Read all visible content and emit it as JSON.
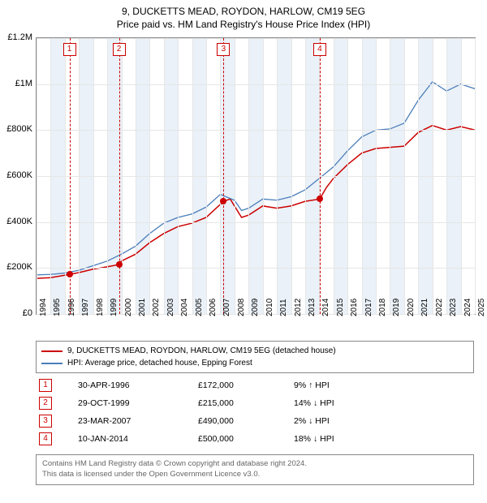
{
  "title_line1": "9, DUCKETTS MEAD, ROYDON, HARLOW, CM19 5EG",
  "title_line2": "Price paid vs. HM Land Registry's House Price Index (HPI)",
  "chart": {
    "type": "line",
    "x_min": 1994,
    "x_max": 2025,
    "y_min": 0,
    "y_max": 1200000,
    "y_ticks": [
      0,
      200000,
      400000,
      600000,
      800000,
      1000000,
      1200000
    ],
    "y_tick_labels": [
      "£0",
      "£200K",
      "£400K",
      "£600K",
      "£800K",
      "£1M",
      "£1.2M"
    ],
    "x_ticks": [
      1994,
      1995,
      1996,
      1997,
      1998,
      1999,
      2000,
      2001,
      2002,
      2003,
      2004,
      2005,
      2006,
      2007,
      2008,
      2009,
      2010,
      2011,
      2012,
      2013,
      2014,
      2015,
      2016,
      2017,
      2018,
      2019,
      2020,
      2021,
      2022,
      2023,
      2024,
      2025
    ],
    "background_color": "#ffffff",
    "grid_color": "#e6e6e6",
    "band_color": "#eaf1f8",
    "series": [
      {
        "label": "9, DUCKETTS MEAD, ROYDON, HARLOW, CM19 5EG (detached house)",
        "color": "#cc0000",
        "width": 1.5,
        "pts": [
          [
            1994,
            155000
          ],
          [
            1995,
            158000
          ],
          [
            1996.33,
            172000
          ],
          [
            1997,
            180000
          ],
          [
            1998,
            195000
          ],
          [
            1999,
            205000
          ],
          [
            1999.83,
            215000
          ],
          [
            2000,
            230000
          ],
          [
            2001,
            260000
          ],
          [
            2002,
            310000
          ],
          [
            2003,
            350000
          ],
          [
            2004,
            380000
          ],
          [
            2005,
            395000
          ],
          [
            2006,
            420000
          ],
          [
            2007.23,
            490000
          ],
          [
            2007.7,
            500000
          ],
          [
            2008,
            470000
          ],
          [
            2008.5,
            420000
          ],
          [
            2009,
            430000
          ],
          [
            2010,
            470000
          ],
          [
            2011,
            460000
          ],
          [
            2012,
            470000
          ],
          [
            2013,
            490000
          ],
          [
            2014.03,
            500000
          ],
          [
            2014.5,
            550000
          ],
          [
            2015,
            590000
          ],
          [
            2016,
            650000
          ],
          [
            2017,
            700000
          ],
          [
            2018,
            720000
          ],
          [
            2019,
            725000
          ],
          [
            2020,
            730000
          ],
          [
            2021,
            790000
          ],
          [
            2022,
            820000
          ],
          [
            2023,
            800000
          ],
          [
            2024,
            815000
          ],
          [
            2025,
            800000
          ]
        ]
      },
      {
        "label": "HPI: Average price, detached house, Epping Forest",
        "color": "#4a7ebb",
        "width": 1.3,
        "pts": [
          [
            1994,
            170000
          ],
          [
            1995,
            172000
          ],
          [
            1996,
            178000
          ],
          [
            1997,
            190000
          ],
          [
            1998,
            210000
          ],
          [
            1999,
            230000
          ],
          [
            2000,
            260000
          ],
          [
            2001,
            295000
          ],
          [
            2002,
            350000
          ],
          [
            2003,
            395000
          ],
          [
            2004,
            420000
          ],
          [
            2005,
            435000
          ],
          [
            2006,
            465000
          ],
          [
            2007,
            520000
          ],
          [
            2008,
            495000
          ],
          [
            2008.5,
            450000
          ],
          [
            2009,
            460000
          ],
          [
            2010,
            500000
          ],
          [
            2011,
            495000
          ],
          [
            2012,
            510000
          ],
          [
            2013,
            540000
          ],
          [
            2014,
            590000
          ],
          [
            2015,
            640000
          ],
          [
            2016,
            710000
          ],
          [
            2017,
            770000
          ],
          [
            2018,
            800000
          ],
          [
            2019,
            805000
          ],
          [
            2020,
            830000
          ],
          [
            2021,
            930000
          ],
          [
            2022,
            1010000
          ],
          [
            2023,
            970000
          ],
          [
            2024,
            1000000
          ],
          [
            2025,
            980000
          ]
        ]
      }
    ],
    "event_markers": [
      {
        "n": "1",
        "x": 1996.33,
        "y": 172000
      },
      {
        "n": "2",
        "x": 1999.83,
        "y": 215000
      },
      {
        "n": "3",
        "x": 2007.23,
        "y": 490000
      },
      {
        "n": "4",
        "x": 2014.03,
        "y": 500000
      }
    ],
    "dash_color": "#cc0000"
  },
  "legend": {
    "items": [
      {
        "color": "#cc0000",
        "label": "9, DUCKETTS MEAD, ROYDON, HARLOW, CM19 5EG (detached house)"
      },
      {
        "color": "#4a7ebb",
        "label": "HPI: Average price, detached house, Epping Forest"
      }
    ]
  },
  "events": [
    {
      "n": "1",
      "date": "30-APR-1996",
      "price": "£172,000",
      "delta": "9%",
      "dir": "↑",
      "suffix": "HPI"
    },
    {
      "n": "2",
      "date": "29-OCT-1999",
      "price": "£215,000",
      "delta": "14%",
      "dir": "↓",
      "suffix": "HPI"
    },
    {
      "n": "3",
      "date": "23-MAR-2007",
      "price": "£490,000",
      "delta": "2%",
      "dir": "↓",
      "suffix": "HPI"
    },
    {
      "n": "4",
      "date": "10-JAN-2014",
      "price": "£500,000",
      "delta": "18%",
      "dir": "↓",
      "suffix": "HPI"
    }
  ],
  "footer_line1": "Contains HM Land Registry data © Crown copyright and database right 2024.",
  "footer_line2": "This data is licensed under the Open Government Licence v3.0."
}
